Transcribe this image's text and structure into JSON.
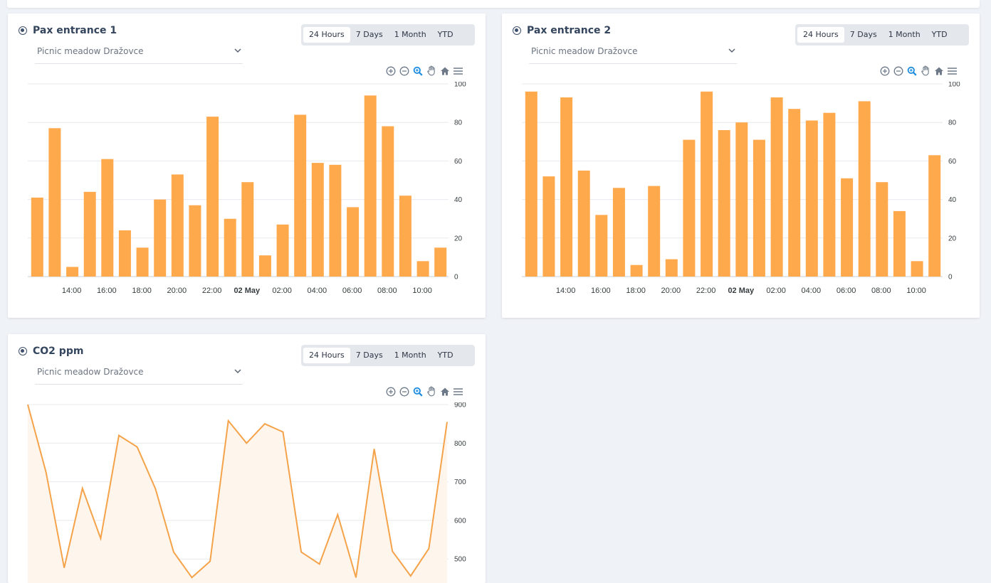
{
  "cards": [
    {
      "title": "Pax entrance 1",
      "location": "Picnic meadow Dražovce",
      "tabs": [
        "24 Hours",
        "7 Days",
        "1 Month",
        "YTD"
      ],
      "active_tab": "24 Hours",
      "toolbar_icons": [
        "zoom-in-icon",
        "zoom-out-icon",
        "zoom-selection-icon",
        "pan-hand-icon",
        "home-reset-icon",
        "menu-icon"
      ],
      "chart_data": {
        "type": "bar",
        "color": "#ffa94d",
        "x_tick_labels": [
          "14:00",
          "16:00",
          "18:00",
          "20:00",
          "22:00",
          "02 May",
          "02:00",
          "04:00",
          "06:00",
          "08:00",
          "10:00"
        ],
        "y_tick_labels": [
          "100",
          "80",
          "60",
          "40",
          "20",
          "0"
        ],
        "ylim": [
          0,
          100
        ],
        "values": [
          41,
          77,
          5,
          44,
          61,
          24,
          15,
          40,
          53,
          37,
          83,
          30,
          49,
          11,
          27,
          84,
          59,
          58,
          36,
          94,
          78,
          42,
          8,
          15
        ]
      }
    },
    {
      "title": "Pax entrance 2",
      "location": "Picnic meadow Dražovce",
      "tabs": [
        "24 Hours",
        "7 Days",
        "1 Month",
        "YTD"
      ],
      "active_tab": "24 Hours",
      "toolbar_icons": [
        "zoom-in-icon",
        "zoom-out-icon",
        "zoom-selection-icon",
        "pan-hand-icon",
        "home-reset-icon",
        "menu-icon"
      ],
      "chart_data": {
        "type": "bar",
        "color": "#ffa94d",
        "x_tick_labels": [
          "14:00",
          "16:00",
          "18:00",
          "20:00",
          "22:00",
          "02 May",
          "02:00",
          "04:00",
          "06:00",
          "08:00",
          "10:00"
        ],
        "y_tick_labels": [
          "100",
          "80",
          "60",
          "40",
          "20",
          "0"
        ],
        "ylim": [
          0,
          100
        ],
        "values": [
          96,
          52,
          93,
          55,
          32,
          46,
          6,
          47,
          9,
          71,
          96,
          76,
          80,
          71,
          93,
          87,
          81,
          85,
          51,
          91,
          49,
          34,
          8,
          63
        ]
      }
    },
    {
      "title": "CO2 ppm",
      "location": "Picnic meadow Dražovce",
      "tabs": [
        "24 Hours",
        "7 Days",
        "1 Month",
        "YTD"
      ],
      "active_tab": "24 Hours",
      "toolbar_icons": [
        "zoom-in-icon",
        "zoom-out-icon",
        "zoom-selection-icon",
        "pan-hand-icon",
        "home-reset-icon",
        "menu-icon"
      ],
      "chart_data": {
        "type": "area",
        "color": "#f5a34a",
        "y_tick_labels": [
          "900",
          "800",
          "700",
          "600",
          "500"
        ],
        "ylim": [
          450,
          900
        ],
        "values": [
          900,
          725,
          477,
          683,
          553,
          820,
          790,
          682,
          518,
          452,
          494,
          858,
          800,
          850,
          829,
          518,
          487,
          615,
          452,
          785,
          520,
          456,
          527,
          855
        ]
      }
    }
  ]
}
